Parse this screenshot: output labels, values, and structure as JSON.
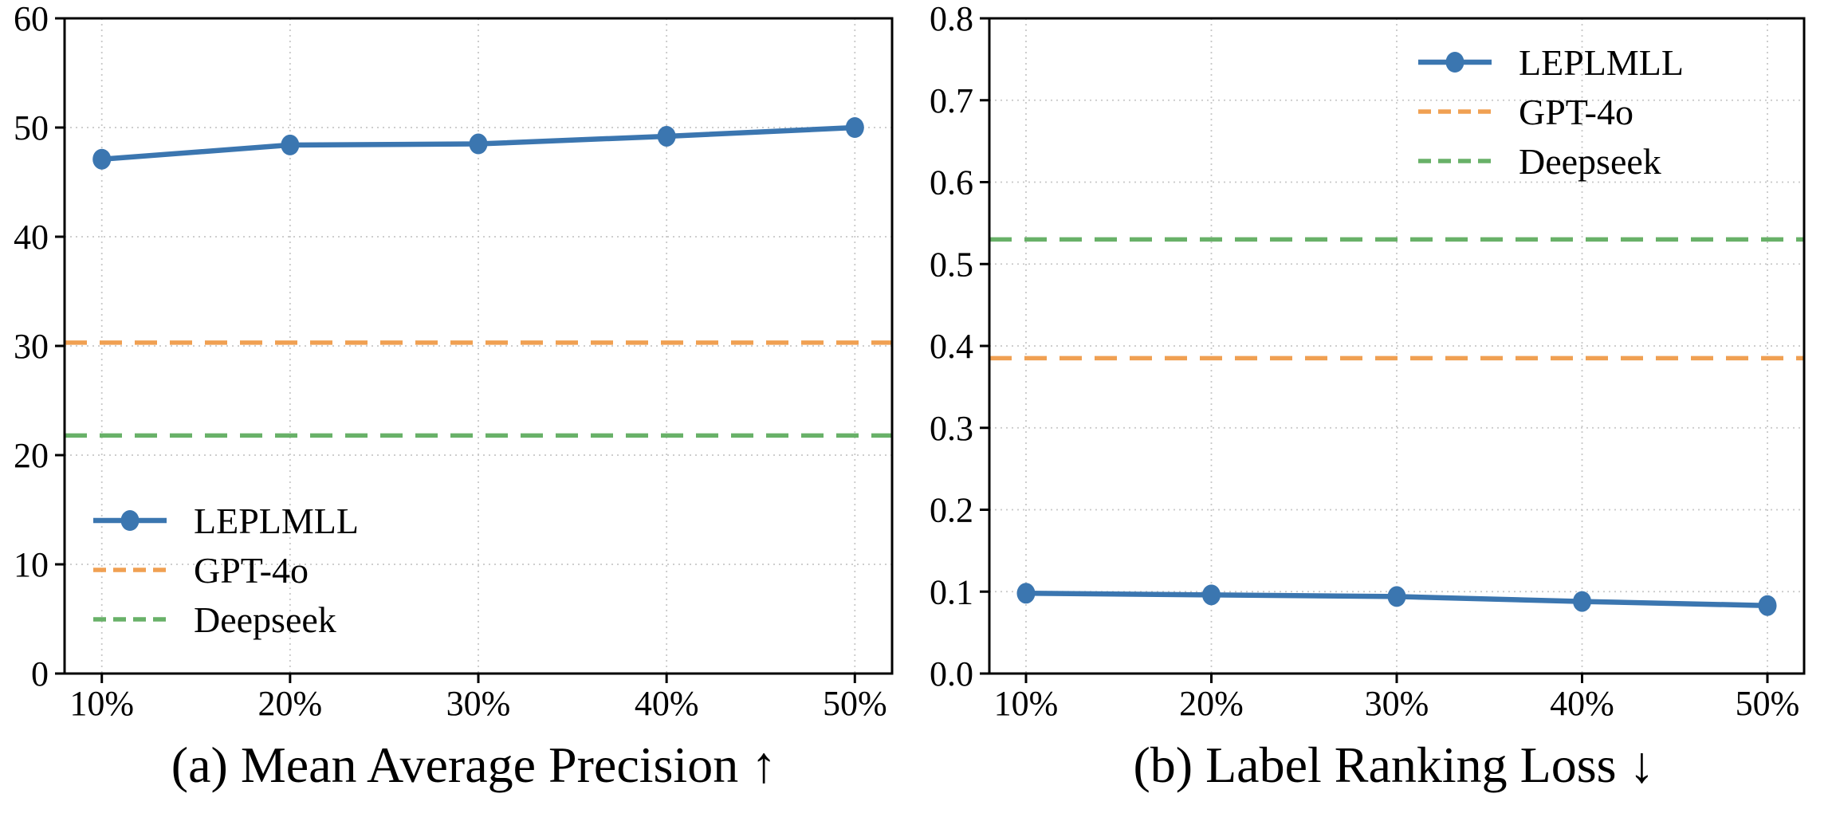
{
  "figure": {
    "background": "#ffffff",
    "grid_color": "#c8c8c8",
    "axis_color": "#000000",
    "text_color": "#000000"
  },
  "chart_data": [
    {
      "id": "mean-average-precision",
      "type": "line",
      "caption": "(a) Mean Average Precision ↑",
      "x_categories": [
        "10%",
        "20%",
        "30%",
        "40%",
        "50%"
      ],
      "ylim": [
        0,
        60
      ],
      "yticks": [
        0,
        10,
        20,
        30,
        40,
        50,
        60
      ],
      "ytick_labels": [
        "0",
        "10",
        "20",
        "30",
        "40",
        "50",
        "60"
      ],
      "grid": true,
      "legend_position": "lower-left",
      "series": [
        {
          "name": "LEPLMLL",
          "style": "solid-marker",
          "color": "#3b76b0",
          "values": [
            47.1,
            48.4,
            48.5,
            49.2,
            50.0
          ]
        },
        {
          "name": "GPT-4o",
          "style": "dashed-hline",
          "color": "#f0a052",
          "value": 30.3
        },
        {
          "name": "Deepseek",
          "style": "dashed-hline",
          "color": "#68b168",
          "value": 21.8
        }
      ]
    },
    {
      "id": "label-ranking-loss",
      "type": "line",
      "caption": "(b) Label Ranking Loss ↓",
      "x_categories": [
        "10%",
        "20%",
        "30%",
        "40%",
        "50%"
      ],
      "ylim": [
        0,
        0.8
      ],
      "yticks": [
        0,
        0.1,
        0.2,
        0.3,
        0.4,
        0.5,
        0.6,
        0.7,
        0.8
      ],
      "ytick_labels": [
        "0.0",
        "0.1",
        "0.2",
        "0.3",
        "0.4",
        "0.5",
        "0.6",
        "0.7",
        "0.8"
      ],
      "grid": true,
      "legend_position": "upper-right",
      "series": [
        {
          "name": "LEPLMLL",
          "style": "solid-marker",
          "color": "#3b76b0",
          "values": [
            0.098,
            0.096,
            0.094,
            0.088,
            0.083
          ]
        },
        {
          "name": "GPT-4o",
          "style": "dashed-hline",
          "color": "#f0a052",
          "value": 0.385
        },
        {
          "name": "Deepseek",
          "style": "dashed-hline",
          "color": "#68b168",
          "value": 0.53
        }
      ]
    }
  ]
}
